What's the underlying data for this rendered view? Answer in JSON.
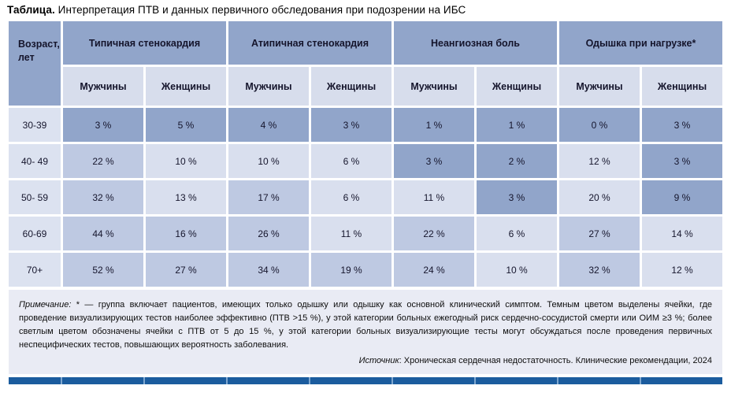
{
  "title": {
    "label": "Таблица.",
    "text": " Интерпретация ПТВ и данных первичного обследования при подозрении на ИБС"
  },
  "table": {
    "age_header": "Возраст, лет",
    "groups": [
      "Типичная стенокардия",
      "Атипичная стенокардия",
      "Неангиозная боль",
      "Одышка при нагрузке*"
    ],
    "subheaders": [
      "Мужчины",
      "Женщины",
      "Мужчины",
      "Женщины",
      "Мужчины",
      "Женщины",
      "Мужчины",
      "Женщины"
    ],
    "rows": [
      {
        "age": "30-39",
        "cells": [
          {
            "v": "3 %",
            "s": "dark"
          },
          {
            "v": "5 %",
            "s": "dark"
          },
          {
            "v": "4 %",
            "s": "dark"
          },
          {
            "v": "3 %",
            "s": "dark"
          },
          {
            "v": "1 %",
            "s": "dark"
          },
          {
            "v": "1 %",
            "s": "dark"
          },
          {
            "v": "0 %",
            "s": "dark"
          },
          {
            "v": "3 %",
            "s": "dark"
          }
        ]
      },
      {
        "age": "40- 49",
        "cells": [
          {
            "v": "22 %",
            "s": "medium"
          },
          {
            "v": "10 %",
            "s": "light"
          },
          {
            "v": "10 %",
            "s": "light"
          },
          {
            "v": "6 %",
            "s": "light"
          },
          {
            "v": "3 %",
            "s": "dark"
          },
          {
            "v": "2 %",
            "s": "dark"
          },
          {
            "v": "12 %",
            "s": "light"
          },
          {
            "v": "3 %",
            "s": "dark"
          }
        ]
      },
      {
        "age": "50- 59",
        "cells": [
          {
            "v": "32 %",
            "s": "medium"
          },
          {
            "v": "13 %",
            "s": "light"
          },
          {
            "v": "17 %",
            "s": "medium"
          },
          {
            "v": "6 %",
            "s": "light"
          },
          {
            "v": "11 %",
            "s": "light"
          },
          {
            "v": "3 %",
            "s": "dark"
          },
          {
            "v": "20 %",
            "s": "light"
          },
          {
            "v": "9 %",
            "s": "dark"
          }
        ]
      },
      {
        "age": "60-69",
        "cells": [
          {
            "v": "44 %",
            "s": "medium"
          },
          {
            "v": "16 %",
            "s": "medium"
          },
          {
            "v": "26 %",
            "s": "medium"
          },
          {
            "v": "11 %",
            "s": "light"
          },
          {
            "v": "22 %",
            "s": "medium"
          },
          {
            "v": "6 %",
            "s": "light"
          },
          {
            "v": "27 %",
            "s": "medium"
          },
          {
            "v": "14 %",
            "s": "light"
          }
        ]
      },
      {
        "age": "70+",
        "cells": [
          {
            "v": "52 %",
            "s": "medium"
          },
          {
            "v": "27 %",
            "s": "medium"
          },
          {
            "v": "34 %",
            "s": "medium"
          },
          {
            "v": "19 %",
            "s": "medium"
          },
          {
            "v": "24 %",
            "s": "medium"
          },
          {
            "v": "10 %",
            "s": "light"
          },
          {
            "v": "32 %",
            "s": "medium"
          },
          {
            "v": "12 %",
            "s": "light"
          }
        ]
      }
    ]
  },
  "note": {
    "label": "Примечание:",
    "text": " * — группа включает пациентов, имеющих только одышку или одышку как основной клинический симптом. Темным цветом выделены ячейки, где проведение визуализирующих тестов наиболее эффективно (ПТВ >15 %), у этой категории больных ежегодный риск сердечно-сосудистой смерти или ОИМ ≥3 %; более светлым цветом обозначены ячейки с ПТВ от 5 до 15 %, у этой категории больных визуализирующие тесты могут обсуждаться после проведения первичных неспецифических тестов, повышающих вероятность заболевания."
  },
  "source": {
    "label": "Источник",
    "text": ": Хроническая сердечная недостаточность. Клинические рекомендации, 2024"
  },
  "colors": {
    "dark_cell": "#91a5ca",
    "medium_cell": "#bec9e2",
    "light_cell": "#d9dfee",
    "subheader_bg": "#d7ddec",
    "age_cell_bg": "#dce2f0",
    "note_bg": "#e9ebf4",
    "bottom_bar": "#1b5c9e"
  },
  "chart_data": {
    "type": "table",
    "title": "Интерпретация ПТВ и данных первичного обследования при подозрении на ИБС",
    "column_groups": [
      "Типичная стенокардия",
      "Атипичная стенокардия",
      "Неангиозная боль",
      "Одышка при нагрузке*"
    ],
    "columns": [
      "Возраст, лет",
      "Мужчины",
      "Женщины",
      "Мужчины",
      "Женщины",
      "Мужчины",
      "Женщины",
      "Мужчины",
      "Женщины"
    ],
    "rows": [
      [
        "30-39",
        3,
        5,
        4,
        3,
        1,
        1,
        0,
        3
      ],
      [
        "40-49",
        22,
        10,
        10,
        6,
        3,
        2,
        12,
        3
      ],
      [
        "50-59",
        32,
        13,
        17,
        6,
        11,
        3,
        20,
        9
      ],
      [
        "60-69",
        44,
        16,
        26,
        11,
        22,
        6,
        27,
        14
      ],
      [
        "70+",
        52,
        27,
        34,
        19,
        24,
        10,
        32,
        12
      ]
    ],
    "units": "%"
  }
}
